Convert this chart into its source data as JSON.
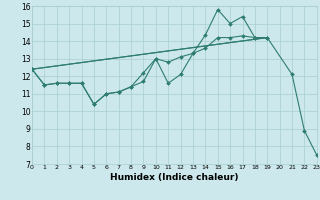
{
  "xlabel": "Humidex (Indice chaleur)",
  "bg_color": "#cce8ec",
  "line_color": "#2e7d6e",
  "grid_color": "#a8cdd0",
  "xlim": [
    0,
    23
  ],
  "ylim": [
    7,
    16
  ],
  "xticks": [
    0,
    1,
    2,
    3,
    4,
    5,
    6,
    7,
    8,
    9,
    10,
    11,
    12,
    13,
    14,
    15,
    16,
    17,
    18,
    19,
    20,
    21,
    22,
    23
  ],
  "yticks": [
    7,
    8,
    9,
    10,
    11,
    12,
    13,
    14,
    15,
    16
  ],
  "lines": [
    {
      "x": [
        0,
        1,
        2,
        3,
        4,
        5,
        6,
        7,
        8,
        9,
        10,
        11,
        12,
        13,
        14,
        15,
        16,
        17,
        18,
        19,
        21,
        22,
        23
      ],
      "y": [
        12.4,
        11.5,
        11.6,
        11.6,
        11.6,
        10.4,
        11.0,
        11.1,
        11.4,
        11.7,
        13.0,
        11.6,
        12.1,
        13.3,
        14.35,
        15.8,
        15.0,
        15.4,
        14.2,
        14.2,
        12.1,
        8.9,
        7.5
      ],
      "marker": true
    },
    {
      "x": [
        0,
        1,
        2,
        3,
        4,
        5,
        6,
        7,
        8,
        9,
        10,
        11,
        12,
        13,
        14,
        15,
        16,
        17,
        18,
        19
      ],
      "y": [
        12.4,
        11.5,
        11.6,
        11.6,
        11.6,
        10.4,
        11.0,
        11.1,
        11.4,
        12.2,
        13.0,
        12.8,
        13.1,
        13.3,
        13.6,
        14.2,
        14.2,
        14.3,
        14.2,
        14.2
      ],
      "marker": true
    },
    {
      "x": [
        0,
        19
      ],
      "y": [
        12.4,
        14.2
      ],
      "marker": false
    },
    {
      "x": [
        0,
        19
      ],
      "y": [
        12.4,
        14.2
      ],
      "marker": false
    }
  ]
}
